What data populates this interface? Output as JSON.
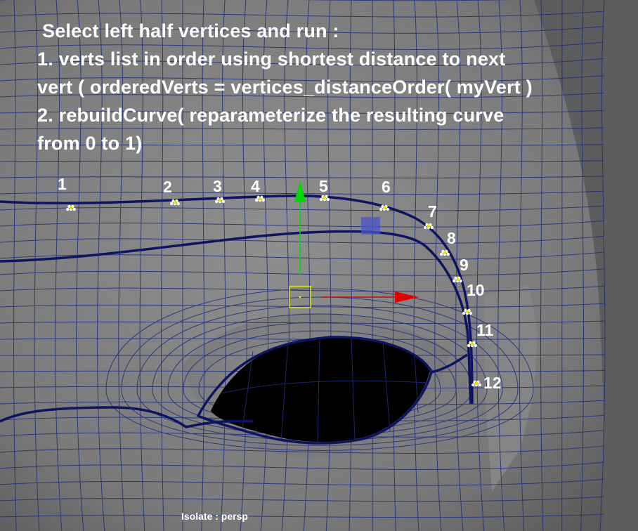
{
  "instructions": {
    "line1": " Select left half vertices and run :",
    "line2": "1. verts list in order using shortest distance to next",
    "line3": "vert  ( orderedVerts = vertices_distanceOrder( myVert )",
    "line4": "2. rebuildCurve( reparameterize the resulting curve",
    "line5": "from 0 to 1)"
  },
  "vertex_labels": [
    "1",
    "2",
    "3",
    "4",
    "5",
    "6",
    "7",
    "8",
    "9",
    "10",
    "11",
    "12"
  ],
  "status": {
    "text": "Isolate : persp"
  },
  "colors": {
    "background": "#5e5e5e",
    "mesh_wire": "#1f2e7a",
    "edge_loop": "#0d1460",
    "eye_socket": "#000000",
    "vertex": "#ffffff",
    "manip_x": "#e00000",
    "manip_y": "#00d800",
    "manip_center": "#e6e600",
    "manip_plane": "#4a55c8",
    "text": "#ffffff"
  },
  "manipulator": {
    "type": "move-tool"
  }
}
